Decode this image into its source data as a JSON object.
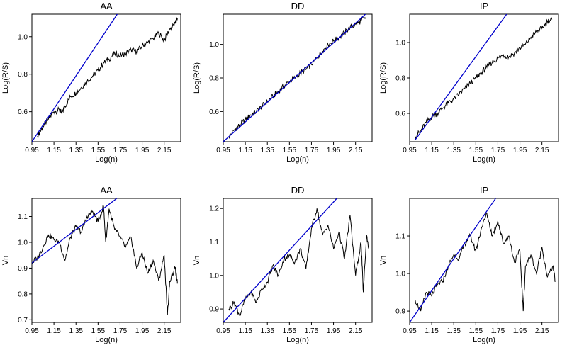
{
  "chart_data": [
    {
      "type": "line",
      "title": "AA",
      "xlabel": "Log(n)",
      "ylabel": "Log(R/S)",
      "xlim": [
        0.95,
        2.3
      ],
      "ylim": [
        0.44,
        1.12
      ],
      "xticks": [
        "0.95",
        "1.15",
        "1.35",
        "1.55",
        "1.75",
        "1.95",
        "2.15"
      ],
      "yticks": [
        "0.6",
        "0.8",
        "1.0"
      ],
      "fit_line": {
        "x": [
          0.95,
          1.73
        ],
        "y": [
          0.44,
          1.125
        ]
      },
      "series": [
        {
          "x": [
            1.0,
            1.05,
            1.1,
            1.15,
            1.2,
            1.22,
            1.25,
            1.3,
            1.35,
            1.4,
            1.45,
            1.5,
            1.55,
            1.6,
            1.65,
            1.7,
            1.75,
            1.8,
            1.85,
            1.9,
            1.95,
            2.0,
            2.05,
            2.1,
            2.15,
            2.2,
            2.25,
            2.27
          ],
          "y": [
            0.47,
            0.52,
            0.56,
            0.6,
            0.61,
            0.59,
            0.63,
            0.68,
            0.7,
            0.73,
            0.76,
            0.79,
            0.82,
            0.86,
            0.88,
            0.91,
            0.9,
            0.91,
            0.93,
            0.92,
            0.95,
            0.97,
            0.99,
            1.02,
            0.98,
            1.04,
            1.07,
            1.1
          ]
        }
      ]
    },
    {
      "type": "line",
      "title": "DD",
      "xlabel": "Log(n)",
      "ylabel": "Log(R/S)",
      "xlim": [
        0.95,
        2.3
      ],
      "ylim": [
        0.42,
        1.18
      ],
      "xticks": [
        "0.95",
        "1.15",
        "1.35",
        "1.55",
        "1.75",
        "1.95",
        "2.15"
      ],
      "yticks": [
        "0.6",
        "0.8",
        "1.0"
      ],
      "fit_line": {
        "x": [
          0.95,
          2.24
        ],
        "y": [
          0.42,
          1.18
        ]
      },
      "series": [
        {
          "x": [
            1.0,
            1.05,
            1.1,
            1.15,
            1.2,
            1.25,
            1.3,
            1.35,
            1.4,
            1.45,
            1.5,
            1.55,
            1.6,
            1.65,
            1.7,
            1.75,
            1.8,
            1.85,
            1.9,
            1.95,
            2.0,
            2.05,
            2.1,
            2.15,
            2.2,
            2.24
          ],
          "y": [
            0.45,
            0.49,
            0.52,
            0.55,
            0.58,
            0.6,
            0.63,
            0.66,
            0.69,
            0.72,
            0.75,
            0.78,
            0.8,
            0.83,
            0.85,
            0.88,
            0.92,
            0.96,
            1.0,
            1.02,
            1.04,
            1.07,
            1.1,
            1.12,
            1.14,
            1.16
          ]
        }
      ]
    },
    {
      "type": "line",
      "title": "IP",
      "xlabel": "Log(n)",
      "ylabel": "Log(R/S)",
      "xlim": [
        0.95,
        2.3
      ],
      "ylim": [
        0.44,
        1.16
      ],
      "xticks": [
        "0.95",
        "1.15",
        "1.35",
        "1.55",
        "1.75",
        "1.95",
        "2.15"
      ],
      "yticks": [
        "0.6",
        "0.8",
        "1.0"
      ],
      "fit_line": {
        "x": [
          1.0,
          1.83
        ],
        "y": [
          0.45,
          1.16
        ]
      },
      "series": [
        {
          "x": [
            1.0,
            1.05,
            1.1,
            1.15,
            1.2,
            1.25,
            1.3,
            1.35,
            1.4,
            1.45,
            1.5,
            1.55,
            1.6,
            1.65,
            1.7,
            1.75,
            1.8,
            1.85,
            1.9,
            1.95,
            2.0,
            2.05,
            2.1,
            2.15,
            2.2,
            2.24
          ],
          "y": [
            0.47,
            0.5,
            0.55,
            0.58,
            0.6,
            0.63,
            0.66,
            0.68,
            0.71,
            0.74,
            0.77,
            0.8,
            0.83,
            0.86,
            0.89,
            0.91,
            0.93,
            0.92,
            0.94,
            0.97,
            0.99,
            1.03,
            1.06,
            1.08,
            1.12,
            1.13
          ]
        }
      ]
    },
    {
      "type": "line",
      "title": "AA",
      "xlabel": "Log(n)",
      "ylabel": "Vn",
      "xlim": [
        0.95,
        2.3
      ],
      "ylim": [
        0.69,
        1.17
      ],
      "xticks": [
        "0.95",
        "1.15",
        "1.35",
        "1.55",
        "1.75",
        "1.95",
        "2.15"
      ],
      "yticks": [
        "0.7",
        "0.8",
        "0.9",
        "1.0",
        "1.1"
      ],
      "fit_line": {
        "x": [
          0.95,
          1.72
        ],
        "y": [
          0.92,
          1.17
        ]
      },
      "series": [
        {
          "x": [
            0.95,
            1.0,
            1.05,
            1.1,
            1.15,
            1.2,
            1.25,
            1.3,
            1.35,
            1.4,
            1.45,
            1.5,
            1.55,
            1.6,
            1.62,
            1.65,
            1.7,
            1.75,
            1.8,
            1.85,
            1.9,
            1.95,
            2.0,
            2.05,
            2.1,
            2.15,
            2.18,
            2.2,
            2.25,
            2.27
          ],
          "y": [
            0.92,
            0.94,
            0.98,
            1.03,
            1.01,
            1.0,
            0.93,
            1.02,
            1.06,
            1.04,
            1.1,
            1.12,
            1.08,
            1.14,
            1.0,
            1.13,
            1.05,
            1.02,
            0.98,
            1.02,
            0.9,
            0.96,
            0.88,
            0.93,
            0.85,
            0.95,
            0.72,
            0.85,
            0.9,
            0.84
          ]
        }
      ]
    },
    {
      "type": "line",
      "title": "DD",
      "xlabel": "Log(n)",
      "ylabel": "Vn",
      "xlim": [
        0.95,
        2.3
      ],
      "ylim": [
        0.86,
        1.23
      ],
      "xticks": [
        "0.95",
        "1.15",
        "1.35",
        "1.55",
        "1.75",
        "1.95",
        "2.15"
      ],
      "yticks": [
        "0.9",
        "1.0",
        "1.1",
        "1.2"
      ],
      "fit_line": {
        "x": [
          0.95,
          1.98
        ],
        "y": [
          0.86,
          1.23
        ]
      },
      "series": [
        {
          "x": [
            1.0,
            1.05,
            1.1,
            1.15,
            1.2,
            1.25,
            1.3,
            1.35,
            1.4,
            1.45,
            1.5,
            1.55,
            1.6,
            1.65,
            1.7,
            1.75,
            1.8,
            1.85,
            1.9,
            1.95,
            2.0,
            2.05,
            2.1,
            2.15,
            2.2,
            2.22,
            2.25,
            2.27
          ],
          "y": [
            0.9,
            0.92,
            0.88,
            0.93,
            0.95,
            0.92,
            0.96,
            0.98,
            1.03,
            1.0,
            1.05,
            1.06,
            1.04,
            1.08,
            1.02,
            1.14,
            1.2,
            1.12,
            1.15,
            1.08,
            1.13,
            1.05,
            1.18,
            1.0,
            1.1,
            0.95,
            1.12,
            1.08
          ]
        }
      ]
    },
    {
      "type": "line",
      "title": "IP",
      "xlabel": "Log(n)",
      "ylabel": "Vn",
      "xlim": [
        0.95,
        2.3
      ],
      "ylim": [
        0.87,
        1.2
      ],
      "xticks": [
        "0.95",
        "1.15",
        "1.35",
        "1.55",
        "1.75",
        "1.95",
        "2.15"
      ],
      "yticks": [
        "0.9",
        "1.0",
        "1.1"
      ],
      "fit_line": {
        "x": [
          0.95,
          1.73
        ],
        "y": [
          0.87,
          1.2
        ]
      },
      "series": [
        {
          "x": [
            1.0,
            1.05,
            1.1,
            1.15,
            1.2,
            1.25,
            1.3,
            1.35,
            1.4,
            1.45,
            1.5,
            1.55,
            1.6,
            1.65,
            1.7,
            1.75,
            1.8,
            1.85,
            1.9,
            1.95,
            1.98,
            2.0,
            2.05,
            2.1,
            2.15,
            2.2,
            2.25,
            2.27
          ],
          "y": [
            0.93,
            0.9,
            0.95,
            0.94,
            0.97,
            0.98,
            1.02,
            1.05,
            1.04,
            1.08,
            1.1,
            1.06,
            1.12,
            1.16,
            1.1,
            1.14,
            1.08,
            1.1,
            1.03,
            1.06,
            0.9,
            1.02,
            1.05,
            1.0,
            1.07,
            0.99,
            1.02,
            0.98
          ]
        }
      ]
    }
  ]
}
